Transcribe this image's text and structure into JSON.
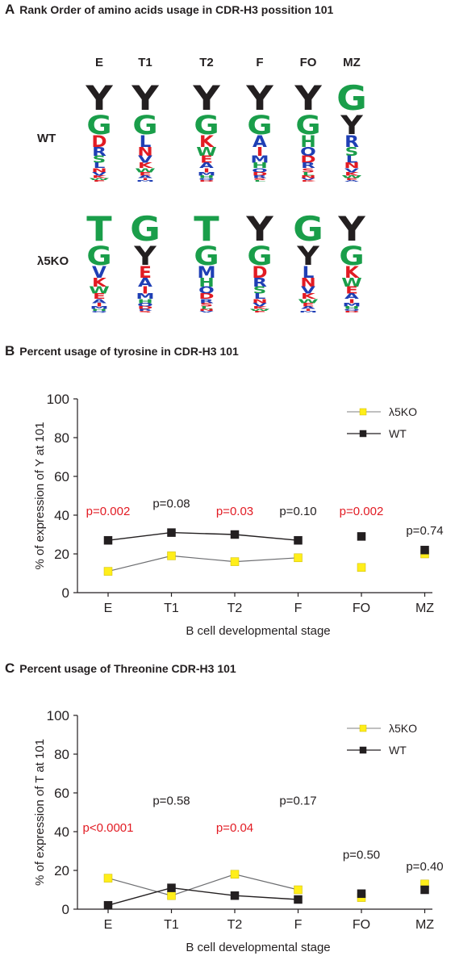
{
  "panel_a": {
    "letter": "A",
    "title": "Rank Order of amino acids usage in CDR-H3 possition 101",
    "columns": [
      "E",
      "T1",
      "T2",
      "F",
      "FO",
      "MZ"
    ],
    "rows": [
      {
        "label": "WT",
        "top_letters": [
          [
            "Y",
            "G"
          ],
          [
            "Y",
            "G"
          ],
          [
            "Y",
            "G"
          ],
          [
            "Y",
            "G"
          ],
          [
            "Y",
            "G"
          ],
          [
            "G",
            "Y"
          ]
        ]
      },
      {
        "label": "λ5KO",
        "top_letters": [
          [
            "T",
            "G"
          ],
          [
            "G",
            "Y"
          ],
          [
            "T",
            "G"
          ],
          [
            "Y",
            "G"
          ],
          [
            "G",
            "Y"
          ],
          [
            "Y",
            "G"
          ]
        ]
      }
    ]
  },
  "colors": {
    "black": "#231f20",
    "green": "#1a9e4a",
    "red": "#e21b23",
    "blue": "#1f3fb5",
    "yellow": "#ffee1a",
    "pred": "#e21b23"
  },
  "panel_b": {
    "letter": "B",
    "title": "Percent usage of  tyrosine in CDR-H3 101"
  },
  "panel_c": {
    "letter": "C",
    "title": "Percent usage of  Threonine CDR-H3 101"
  },
  "chart_data": [
    {
      "type": "line",
      "ylabel": "% of expression of Y at 101",
      "xlabel": "B cell  developmental stage",
      "categories": [
        "E",
        "T1",
        "T2",
        "F",
        "FO",
        "MZ"
      ],
      "ylim": [
        0,
        100
      ],
      "yticks": [
        "0",
        "20",
        "40",
        "60",
        "80",
        "100"
      ],
      "legend_position": "top-right",
      "series": [
        {
          "name": "λ5KO",
          "values": [
            11,
            19,
            16,
            18,
            13,
            20
          ],
          "color": "#ffee1a"
        },
        {
          "name": "WT",
          "values": [
            27,
            31,
            30,
            27,
            29,
            22
          ],
          "color": "#231f20"
        }
      ],
      "pvalues": [
        {
          "text": "p=0.002",
          "significant": true,
          "y": 40
        },
        {
          "text": "p=0.08",
          "significant": false,
          "y": 44
        },
        {
          "text": "p=0.03",
          "significant": true,
          "y": 40
        },
        {
          "text": "p=0.10",
          "significant": false,
          "y": 40
        },
        {
          "text": "p=0.002",
          "significant": true,
          "y": 40
        },
        {
          "text": "p=0.74",
          "significant": false,
          "y": 30
        }
      ]
    },
    {
      "type": "line",
      "ylabel": "% of expression of T at 101",
      "xlabel": "B cell  developmental stage",
      "categories": [
        "E",
        "T1",
        "T2",
        "F",
        "FO",
        "MZ"
      ],
      "ylim": [
        0,
        100
      ],
      "yticks": [
        "0",
        "20",
        "40",
        "60",
        "80",
        "100"
      ],
      "legend_position": "top-right",
      "series": [
        {
          "name": "λ5KO",
          "values": [
            16,
            7,
            18,
            10,
            6,
            13
          ],
          "color": "#ffee1a"
        },
        {
          "name": "WT",
          "values": [
            2,
            11,
            7,
            5,
            8,
            10
          ],
          "color": "#231f20"
        }
      ],
      "pvalues": [
        {
          "text": "p<0.0001",
          "significant": true,
          "y": 40
        },
        {
          "text": "p=0.58",
          "significant": false,
          "y": 54
        },
        {
          "text": "p=0.04",
          "significant": true,
          "y": 40
        },
        {
          "text": "p=0.17",
          "significant": false,
          "y": 54
        },
        {
          "text": "p=0.50",
          "significant": false,
          "y": 26
        },
        {
          "text": "p=0.40",
          "significant": false,
          "y": 20
        }
      ]
    }
  ]
}
